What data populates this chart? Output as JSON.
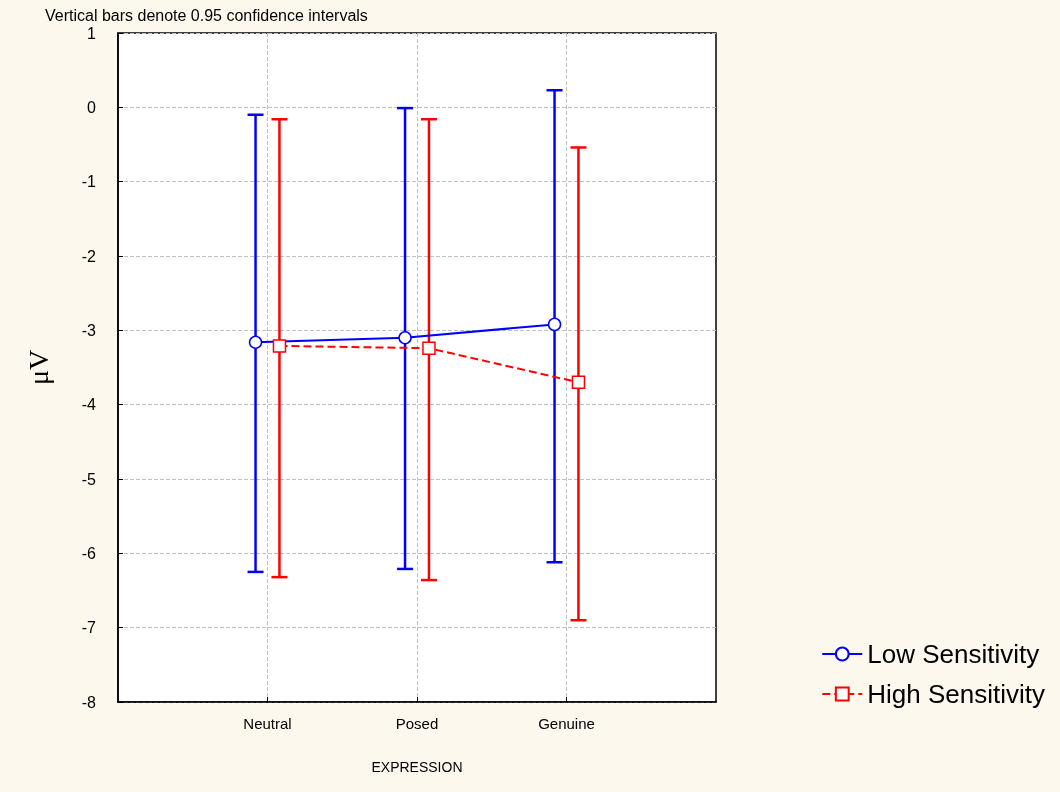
{
  "chart_data": {
    "type": "line",
    "annotations": [
      "Vertical bars denote 0.95 confidence intervals"
    ],
    "xlabel": "EXPRESSION",
    "ylabel": "μV",
    "categories": [
      "Neutral",
      "Posed",
      "Genuine"
    ],
    "series": [
      {
        "name": "Low Sensitivity",
        "color": "#0000ff",
        "marker": "circle",
        "line_style": "solid",
        "values": [
          -3.16,
          -3.1,
          -2.92
        ],
        "errors": [
          [
            -6.25,
            -0.1
          ],
          [
            -6.21,
            -0.01
          ],
          [
            -6.12,
            0.23
          ]
        ]
      },
      {
        "name": "High Sensitivity",
        "color": "#ff0000",
        "marker": "square",
        "line_style": "dashed",
        "values": [
          -3.21,
          -3.24,
          -3.7
        ],
        "errors": [
          [
            -6.32,
            -0.16
          ],
          [
            -6.36,
            -0.16
          ],
          [
            -6.9,
            -0.54
          ]
        ]
      }
    ],
    "ylim": [
      -8,
      1
    ],
    "yticks": [
      -8,
      -7,
      -6,
      -5,
      -4,
      -3,
      -2,
      -1,
      0,
      1
    ],
    "grid": true,
    "legend": "bottom right"
  }
}
